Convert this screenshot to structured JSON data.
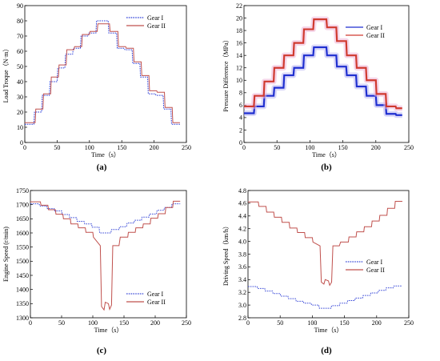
{
  "chart_data": [
    {
      "type": "line",
      "panel_label": "(a)",
      "xlabel": "Time（s）",
      "ylabel": "Load Troque（N·m）",
      "xlim": [
        0,
        250
      ],
      "ylim": [
        0,
        90
      ],
      "xticks": [
        "0",
        "50",
        "100",
        "150",
        "200",
        "250"
      ],
      "yticks": [
        "0",
        "10",
        "20",
        "30",
        "40",
        "50",
        "60",
        "70",
        "80",
        "90"
      ],
      "legend_position": "top-right",
      "series": [
        {
          "name": "Gear I",
          "color": "#2a3cd8",
          "style": "dotted",
          "x": [
            0,
            14,
            15,
            26,
            27,
            38,
            39,
            50,
            51,
            62,
            63,
            74,
            75,
            86,
            87,
            98,
            99,
            110,
            111,
            129,
            130,
            142,
            143,
            154,
            155,
            166,
            167,
            178,
            179,
            190,
            191,
            202,
            203,
            214,
            215,
            226,
            227,
            240
          ],
          "y": [
            12,
            12,
            20,
            20,
            31,
            31,
            40,
            40,
            49,
            49,
            58,
            58,
            62,
            62,
            70,
            70,
            72,
            72,
            80,
            80,
            72,
            72,
            62,
            62,
            61,
            61,
            52,
            52,
            43,
            43,
            32,
            32,
            31,
            31,
            22,
            22,
            12,
            12
          ]
        },
        {
          "name": "Gear II",
          "color": "#c0504d",
          "style": "solid",
          "x": [
            0,
            16,
            17,
            28,
            29,
            40,
            41,
            52,
            53,
            64,
            65,
            76,
            77,
            88,
            89,
            100,
            101,
            112,
            113,
            131,
            132,
            144,
            145,
            156,
            157,
            168,
            169,
            180,
            181,
            192,
            193,
            204,
            205,
            216,
            217,
            228,
            229,
            240
          ],
          "y": [
            13,
            13,
            22,
            22,
            32,
            32,
            43,
            43,
            51,
            51,
            61,
            61,
            63,
            63,
            71,
            71,
            73,
            73,
            78,
            78,
            73,
            73,
            63,
            63,
            62,
            62,
            53,
            53,
            44,
            44,
            34,
            34,
            33,
            33,
            23,
            23,
            13,
            13
          ]
        }
      ]
    },
    {
      "type": "line",
      "panel_label": "(b)",
      "xlabel": "Time（s）",
      "ylabel": "Pressure Difference（MPa）",
      "xlim": [
        0,
        250
      ],
      "ylim": [
        0,
        22
      ],
      "xticks": [
        "0",
        "50",
        "100",
        "150",
        "200",
        "250"
      ],
      "yticks": [
        "0",
        "2",
        "4",
        "6",
        "8",
        "10",
        "12",
        "14",
        "16",
        "18",
        "20",
        "22"
      ],
      "legend_position": "top-right",
      "series": [
        {
          "name": "Gear I",
          "color": "#1f2fd0",
          "style": "solid",
          "x": [
            0,
            15,
            16,
            30,
            31,
            45,
            46,
            60,
            61,
            75,
            76,
            90,
            91,
            105,
            106,
            125,
            126,
            140,
            141,
            155,
            156,
            170,
            171,
            185,
            186,
            200,
            201,
            215,
            216,
            230,
            231,
            240
          ],
          "y": [
            4.7,
            4.7,
            5.8,
            5.8,
            7.5,
            7.5,
            8.8,
            8.8,
            10.8,
            10.8,
            12.0,
            12.0,
            14.0,
            14.0,
            15.3,
            15.3,
            14.0,
            14.0,
            12.2,
            12.2,
            10.8,
            10.8,
            9.0,
            9.0,
            7.5,
            7.5,
            6.0,
            6.0,
            4.6,
            4.6,
            4.4,
            4.4
          ]
        },
        {
          "name": "Gear II",
          "color": "#d03a30",
          "style": "solid",
          "x": [
            0,
            15,
            16,
            30,
            31,
            45,
            46,
            60,
            61,
            75,
            76,
            90,
            91,
            105,
            106,
            125,
            126,
            140,
            141,
            155,
            156,
            170,
            171,
            185,
            186,
            200,
            201,
            215,
            216,
            230,
            231,
            240
          ],
          "y": [
            5.8,
            5.8,
            7.5,
            7.5,
            9.8,
            9.8,
            12.0,
            12.0,
            14.0,
            14.0,
            16.0,
            16.0,
            18.2,
            18.2,
            19.8,
            19.8,
            18.5,
            18.5,
            16.3,
            16.3,
            14.0,
            14.0,
            12.0,
            12.0,
            10.0,
            10.0,
            7.8,
            7.8,
            5.8,
            5.8,
            5.5,
            5.5
          ]
        }
      ]
    },
    {
      "type": "line",
      "panel_label": "(c)",
      "xlabel": "Time（s）",
      "ylabel": "Engine Speed (r/min)",
      "xlim": [
        0,
        250
      ],
      "ylim": [
        1300,
        1750
      ],
      "xticks": [
        "0",
        "50",
        "100",
        "150",
        "200",
        "250"
      ],
      "yticks": [
        "1300",
        "1350",
        "1400",
        "1450",
        "1500",
        "1550",
        "1600",
        "1650",
        "1700",
        "1750"
      ],
      "legend_position": "bottom-right",
      "series": [
        {
          "name": "Gear I",
          "color": "#3a4ad8",
          "style": "dotted",
          "x": [
            0,
            14,
            15,
            26,
            27,
            38,
            39,
            50,
            51,
            62,
            63,
            74,
            75,
            86,
            87,
            98,
            99,
            110,
            111,
            129,
            130,
            142,
            143,
            154,
            155,
            166,
            167,
            178,
            179,
            190,
            191,
            202,
            203,
            214,
            215,
            226,
            227,
            240
          ],
          "y": [
            1703,
            1703,
            1695,
            1695,
            1686,
            1686,
            1678,
            1678,
            1665,
            1665,
            1654,
            1654,
            1641,
            1641,
            1632,
            1632,
            1620,
            1620,
            1600,
            1600,
            1612,
            1612,
            1622,
            1622,
            1635,
            1635,
            1645,
            1645,
            1656,
            1656,
            1667,
            1667,
            1680,
            1680,
            1690,
            1690,
            1703,
            1703
          ]
        },
        {
          "name": "Gear II",
          "color": "#c0504d",
          "style": "solid",
          "x": [
            0,
            16,
            17,
            28,
            29,
            40,
            41,
            52,
            53,
            64,
            65,
            76,
            77,
            88,
            89,
            100,
            101,
            112,
            114,
            118,
            120,
            125,
            127,
            130,
            132,
            142,
            144,
            156,
            157,
            168,
            169,
            180,
            181,
            192,
            193,
            204,
            205,
            216,
            217,
            228,
            229,
            240
          ],
          "y": [
            1710,
            1710,
            1698,
            1698,
            1682,
            1682,
            1666,
            1666,
            1650,
            1650,
            1632,
            1632,
            1618,
            1618,
            1602,
            1602,
            1585,
            1555,
            1340,
            1328,
            1355,
            1350,
            1330,
            1345,
            1555,
            1555,
            1585,
            1585,
            1602,
            1602,
            1618,
            1618,
            1632,
            1632,
            1652,
            1652,
            1668,
            1668,
            1690,
            1690,
            1712,
            1712
          ]
        }
      ]
    },
    {
      "type": "line",
      "panel_label": "(d)",
      "xlabel": "Time（s）",
      "ylabel": "Driving Speed（km/h）",
      "xlim": [
        0,
        250
      ],
      "ylim": [
        2.8,
        4.8
      ],
      "xticks": [
        "0",
        "50",
        "100",
        "150",
        "200",
        "250"
      ],
      "yticks": [
        "2.8",
        "3.0",
        "3.2",
        "3.4",
        "3.6",
        "3.8",
        "4.0",
        "4.2",
        "4.4",
        "4.6",
        "4.8"
      ],
      "legend_position": "middle-right",
      "series": [
        {
          "name": "Gear I",
          "color": "#3a4ad8",
          "style": "dotted",
          "x": [
            0,
            14,
            15,
            26,
            27,
            38,
            39,
            50,
            51,
            62,
            63,
            74,
            75,
            86,
            87,
            98,
            99,
            110,
            111,
            129,
            130,
            142,
            143,
            154,
            155,
            166,
            167,
            178,
            179,
            190,
            191,
            202,
            203,
            214,
            215,
            226,
            227,
            240
          ],
          "y": [
            3.29,
            3.29,
            3.26,
            3.26,
            3.22,
            3.22,
            3.18,
            3.18,
            3.14,
            3.14,
            3.1,
            3.1,
            3.06,
            3.06,
            3.03,
            3.03,
            3.0,
            3.0,
            2.95,
            2.95,
            2.99,
            2.99,
            3.03,
            3.03,
            3.07,
            3.07,
            3.11,
            3.11,
            3.15,
            3.15,
            3.19,
            3.19,
            3.23,
            3.23,
            3.27,
            3.27,
            3.3,
            3.3
          ]
        },
        {
          "name": "Gear II",
          "color": "#c0504d",
          "style": "solid",
          "x": [
            0,
            16,
            17,
            28,
            29,
            40,
            41,
            52,
            53,
            64,
            65,
            76,
            77,
            88,
            89,
            100,
            101,
            112,
            114,
            118,
            120,
            125,
            127,
            130,
            132,
            142,
            144,
            156,
            157,
            168,
            169,
            180,
            181,
            192,
            193,
            204,
            205,
            216,
            217,
            228,
            229,
            240
          ],
          "y": [
            4.62,
            4.62,
            4.55,
            4.55,
            4.46,
            4.46,
            4.38,
            4.38,
            4.3,
            4.3,
            4.21,
            4.21,
            4.14,
            4.14,
            4.06,
            4.06,
            3.99,
            3.93,
            3.36,
            3.33,
            3.4,
            3.38,
            3.31,
            3.36,
            3.93,
            3.93,
            3.99,
            3.99,
            4.07,
            4.07,
            4.15,
            4.15,
            4.23,
            4.23,
            4.32,
            4.32,
            4.41,
            4.41,
            4.52,
            4.52,
            4.63,
            4.63
          ]
        }
      ]
    }
  ]
}
